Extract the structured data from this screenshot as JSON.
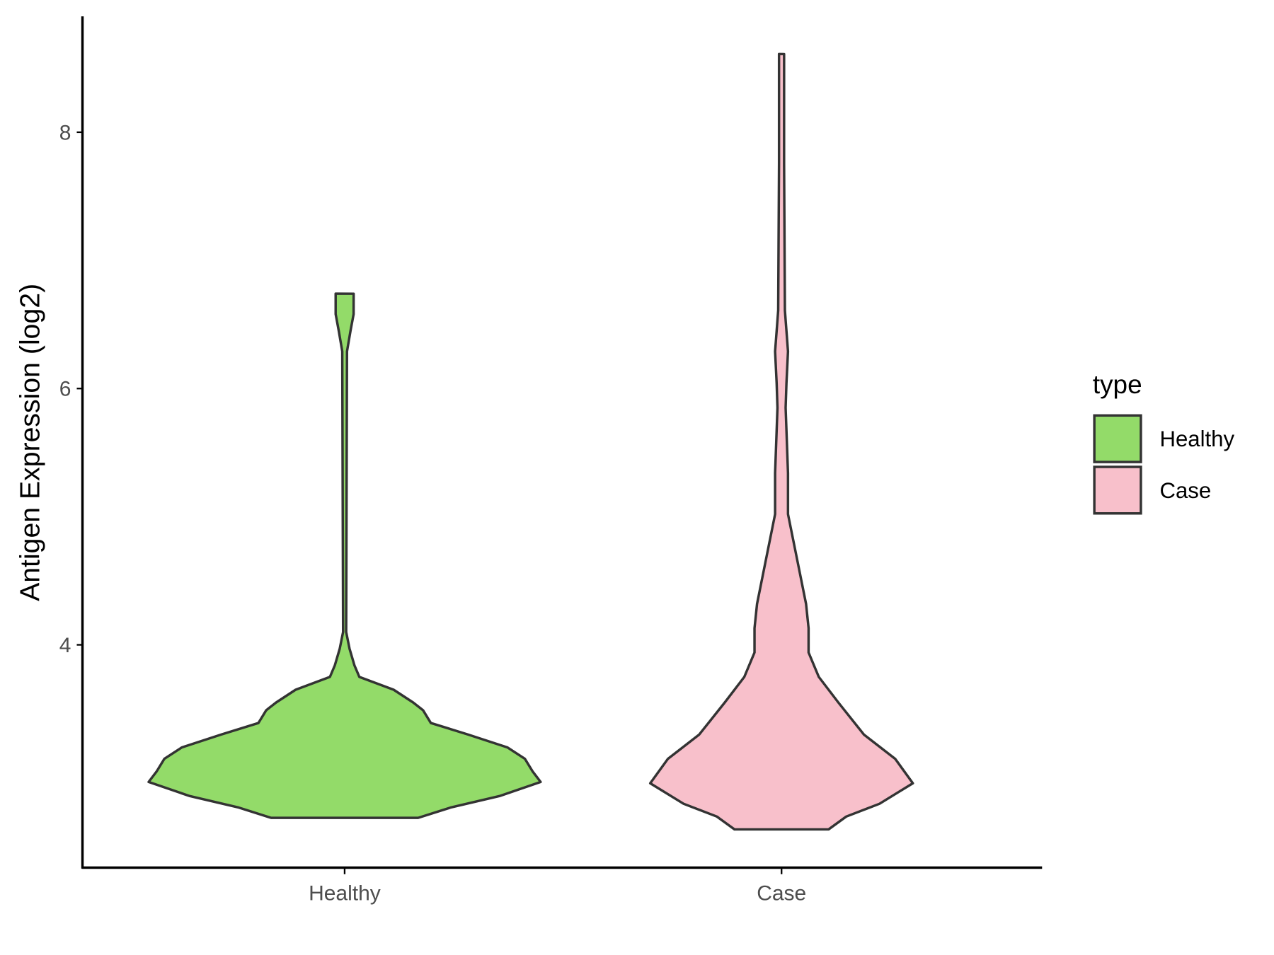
{
  "chart_data": {
    "type": "violin",
    "title": "",
    "xlabel": "",
    "ylabel": "Antigen Expression (log2)",
    "categories": [
      "Healthy",
      "Case"
    ],
    "yticks": [
      4,
      6,
      8
    ],
    "ylim": [
      2.2,
      8.9
    ],
    "grid": false,
    "legend": {
      "title": "type",
      "position": "right",
      "entries": [
        "Healthy",
        "Case"
      ]
    },
    "colors": {
      "Healthy": "#93DB69",
      "Case": "#F8C0CB",
      "outline": "#333333"
    },
    "series": [
      {
        "name": "Healthy",
        "profile": [
          [
            6.74,
            0.046
          ],
          [
            6.58,
            0.046
          ],
          [
            6.45,
            0.03
          ],
          [
            6.29,
            0.012
          ],
          [
            4.1,
            0.008
          ],
          [
            3.97,
            0.025
          ],
          [
            3.84,
            0.05
          ],
          [
            3.75,
            0.075
          ],
          [
            3.65,
            0.25
          ],
          [
            3.55,
            0.35
          ],
          [
            3.49,
            0.4
          ],
          [
            3.39,
            0.44
          ],
          [
            3.3,
            0.63
          ],
          [
            3.2,
            0.83
          ],
          [
            3.11,
            0.92
          ],
          [
            3.01,
            0.96
          ],
          [
            2.93,
            1.0
          ],
          [
            2.82,
            0.79
          ],
          [
            2.73,
            0.54
          ],
          [
            2.65,
            0.375
          ]
        ]
      },
      {
        "name": "Case",
        "profile": [
          [
            8.61,
            0.013
          ],
          [
            7.76,
            0.013
          ],
          [
            6.61,
            0.017
          ],
          [
            6.29,
            0.033
          ],
          [
            6.04,
            0.025
          ],
          [
            5.85,
            0.021
          ],
          [
            5.34,
            0.033
          ],
          [
            5.02,
            0.033
          ],
          [
            4.64,
            0.083
          ],
          [
            4.32,
            0.125
          ],
          [
            4.13,
            0.138
          ],
          [
            3.94,
            0.138
          ],
          [
            3.75,
            0.19
          ],
          [
            3.55,
            0.29
          ],
          [
            3.3,
            0.42
          ],
          [
            3.11,
            0.58
          ],
          [
            2.92,
            0.67
          ],
          [
            2.76,
            0.5
          ],
          [
            2.66,
            0.33
          ],
          [
            2.56,
            0.24
          ]
        ]
      }
    ]
  }
}
